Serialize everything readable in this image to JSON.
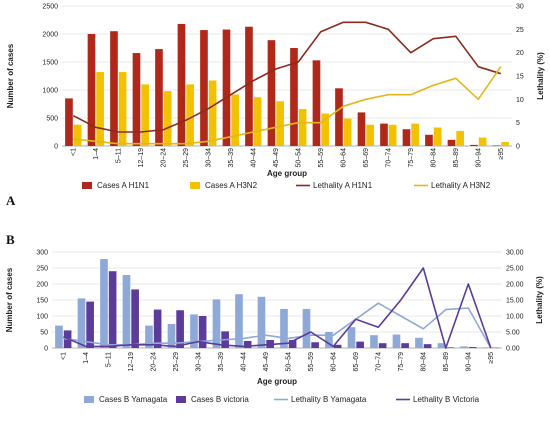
{
  "chart_data": [
    {
      "panel_label": "A",
      "type": "bar",
      "xlabel": "Age group",
      "ylabel": "Number of cases",
      "y2label": "Lethality (%)",
      "ylim": [
        0,
        2500
      ],
      "y2lim": [
        0,
        30
      ],
      "yticks": [
        "0",
        "500",
        "1000",
        "1500",
        "2000",
        "2500"
      ],
      "y2ticks": [
        "0",
        "5",
        "10",
        "15",
        "20",
        "25",
        "30"
      ],
      "categories": [
        "<1",
        "1–4",
        "5–11",
        "12–19",
        "20–24",
        "25–29",
        "30–34",
        "35–39",
        "40–44",
        "45–49",
        "50–54",
        "55–59",
        "60–64",
        "65–69",
        "70–74",
        "75–79",
        "80–84",
        "85–89",
        "90–94",
        "≥95"
      ],
      "series": [
        {
          "name": "Cases A H1N1",
          "kind": "bar",
          "axis": "left",
          "color": "#b0281a",
          "values": [
            850,
            2000,
            2050,
            1660,
            1730,
            2180,
            2070,
            2080,
            2130,
            1890,
            1750,
            1530,
            1030,
            600,
            400,
            300,
            200,
            110,
            20,
            10
          ]
        },
        {
          "name": "Cases A H3N2",
          "kind": "bar",
          "axis": "left",
          "color": "#f2c200",
          "values": [
            380,
            1320,
            1320,
            1100,
            980,
            1100,
            1170,
            920,
            870,
            800,
            660,
            580,
            490,
            380,
            380,
            400,
            330,
            270,
            150,
            70
          ]
        },
        {
          "name": "Lethality A H1N1",
          "kind": "line",
          "axis": "right",
          "color": "#8b2a1e",
          "values": [
            6.5,
            4,
            3,
            3,
            3.5,
            5.5,
            8,
            11,
            14,
            16.5,
            18,
            24.5,
            26.5,
            26.5,
            25,
            20,
            23,
            23.5,
            17,
            15.5
          ]
        },
        {
          "name": "Lethality A H3N2",
          "kind": "line",
          "axis": "right",
          "color": "#e0b81c",
          "values": [
            1.5,
            1,
            0.5,
            0.5,
            0.5,
            0.5,
            1,
            2,
            3,
            4,
            5,
            5,
            8.5,
            10,
            11,
            11,
            13,
            14.5,
            10,
            17
          ]
        }
      ]
    },
    {
      "panel_label": "B",
      "type": "bar",
      "xlabel": "Age group",
      "ylabel": "Number of cases",
      "y2label": "Lethality (%)",
      "ylim": [
        0,
        300
      ],
      "y2lim": [
        0,
        30
      ],
      "yticks": [
        "0",
        "50",
        "100",
        "150",
        "200",
        "250",
        "300"
      ],
      "y2ticks": [
        "0.00",
        "5.00",
        "10.00",
        "15.00",
        "20.00",
        "25.00",
        "30.00"
      ],
      "categories": [
        "<1",
        "1–4",
        "5–11",
        "12–19",
        "20–24",
        "25–29",
        "30–34",
        "35–39",
        "40–44",
        "45–49",
        "50–54",
        "55–59",
        "60–64",
        "65–69",
        "70–74",
        "75–79",
        "80–84",
        "85–89",
        "90–94",
        "≥95"
      ],
      "series": [
        {
          "name": "Cases B Yamagata",
          "kind": "bar",
          "axis": "left",
          "color": "#8ea8d8",
          "values": [
            70,
            155,
            278,
            228,
            70,
            75,
            105,
            152,
            168,
            160,
            122,
            122,
            50,
            65,
            40,
            42,
            32,
            15,
            5,
            2
          ]
        },
        {
          "name": "Cases B victoria",
          "kind": "bar",
          "axis": "left",
          "color": "#5b3c9a",
          "values": [
            55,
            145,
            240,
            183,
            120,
            118,
            100,
            52,
            22,
            25,
            25,
            18,
            10,
            20,
            15,
            15,
            12,
            2,
            3,
            1
          ]
        },
        {
          "name": "Lethality B Yamagata",
          "kind": "line",
          "axis": "right",
          "color": "#8ea8d8",
          "values": [
            3,
            2,
            1,
            1,
            1.5,
            1.5,
            2,
            2.5,
            3,
            4,
            3,
            4,
            4,
            9,
            14,
            10,
            6,
            12,
            12.5,
            0
          ]
        },
        {
          "name": "Lethality B Victoria",
          "kind": "line",
          "axis": "right",
          "color": "#5b3c9a",
          "values": [
            3.5,
            0.5,
            0.5,
            1,
            1,
            0.5,
            2,
            1,
            0.5,
            1,
            1.5,
            5,
            0.5,
            9,
            6.5,
            15,
            25,
            0,
            20,
            0
          ]
        }
      ]
    }
  ]
}
